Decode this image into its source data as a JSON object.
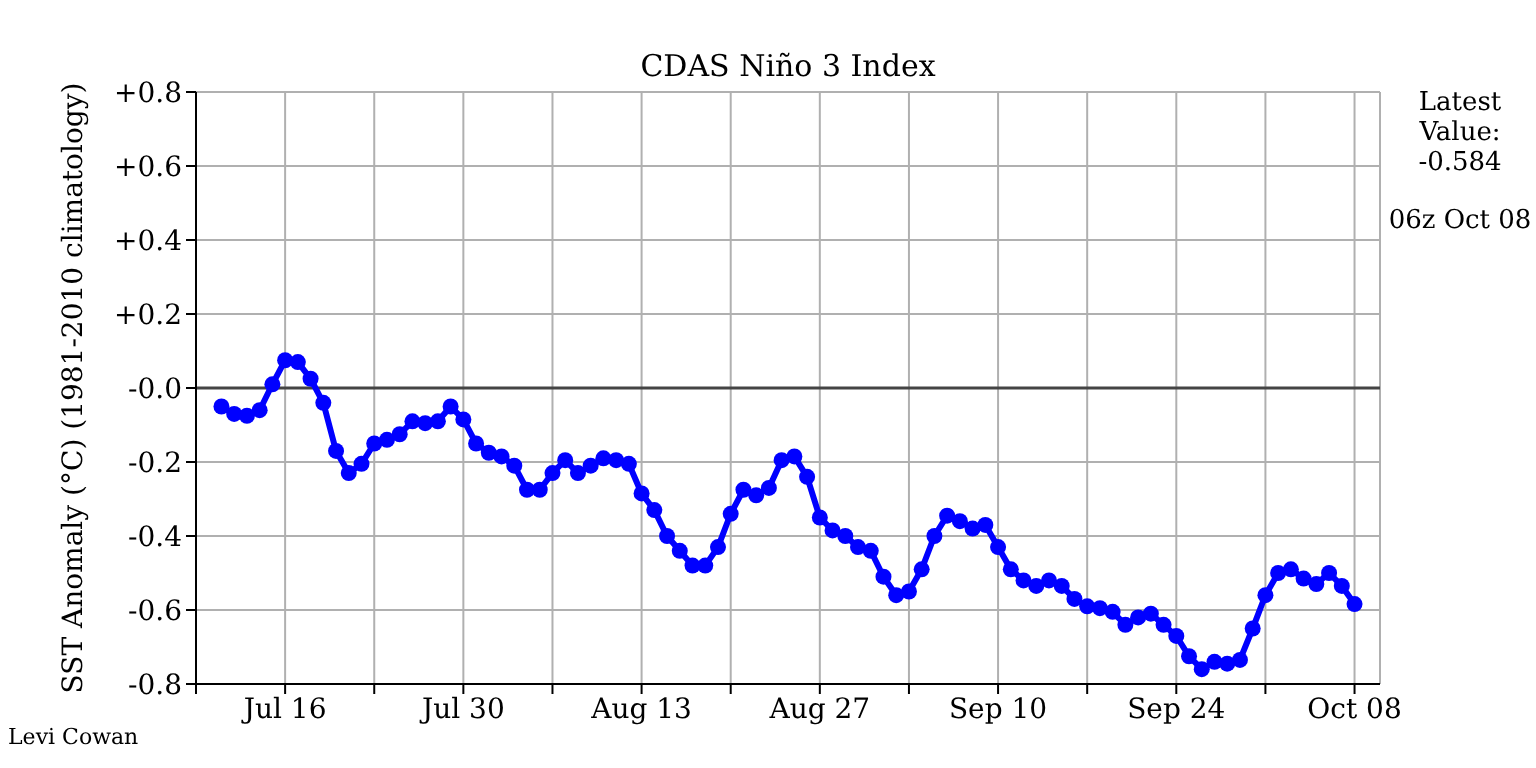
{
  "chart_data": {
    "type": "line",
    "title": "CDAS Niño 3 Index",
    "ylabel": "SST Anomaly (°C) (1981-2010 climatology)",
    "x": [
      "--07-11",
      "--07-12",
      "--07-13",
      "--07-14",
      "--07-15",
      "--07-16",
      "--07-17",
      "--07-18",
      "--07-19",
      "--07-20",
      "--07-21",
      "--07-22",
      "--07-23",
      "--07-24",
      "--07-25",
      "--07-26",
      "--07-27",
      "--07-28",
      "--07-29",
      "--07-30",
      "--07-31",
      "--08-01",
      "--08-02",
      "--08-03",
      "--08-04",
      "--08-05",
      "--08-06",
      "--08-07",
      "--08-08",
      "--08-09",
      "--08-10",
      "--08-11",
      "--08-12",
      "--08-13",
      "--08-14",
      "--08-15",
      "--08-16",
      "--08-17",
      "--08-18",
      "--08-19",
      "--08-20",
      "--08-21",
      "--08-22",
      "--08-23",
      "--08-24",
      "--08-25",
      "--08-26",
      "--08-27",
      "--08-28",
      "--08-29",
      "--08-30",
      "--08-31",
      "--09-01",
      "--09-02",
      "--09-03",
      "--09-04",
      "--09-05",
      "--09-06",
      "--09-07",
      "--09-08",
      "--09-09",
      "--09-10",
      "--09-11",
      "--09-12",
      "--09-13",
      "--09-14",
      "--09-15",
      "--09-16",
      "--09-17",
      "--09-18",
      "--09-19",
      "--09-20",
      "--09-21",
      "--09-22",
      "--09-23",
      "--09-24",
      "--09-25",
      "--09-26",
      "--09-27",
      "--09-28",
      "--09-29",
      "--09-30",
      "--10-01",
      "--10-02",
      "--10-03",
      "--10-04",
      "--10-05",
      "--10-06",
      "--10-07",
      "--10-08"
    ],
    "series": [
      {
        "color": "#0000ff",
        "values": [
          -0.05,
          -0.07,
          -0.075,
          -0.06,
          0.01,
          0.075,
          0.07,
          0.025,
          -0.04,
          -0.17,
          -0.23,
          -0.205,
          -0.15,
          -0.14,
          -0.125,
          -0.09,
          -0.095,
          -0.09,
          -0.05,
          -0.085,
          -0.15,
          -0.175,
          -0.185,
          -0.21,
          -0.275,
          -0.275,
          -0.23,
          -0.195,
          -0.23,
          -0.21,
          -0.19,
          -0.195,
          -0.205,
          -0.285,
          -0.33,
          -0.4,
          -0.44,
          -0.48,
          -0.48,
          -0.43,
          -0.34,
          -0.275,
          -0.29,
          -0.27,
          -0.195,
          -0.185,
          -0.24,
          -0.35,
          -0.385,
          -0.4,
          -0.43,
          -0.44,
          -0.51,
          -0.56,
          -0.55,
          -0.49,
          -0.4,
          -0.345,
          -0.36,
          -0.38,
          -0.37,
          -0.43,
          -0.49,
          -0.52,
          -0.535,
          -0.52,
          -0.535,
          -0.57,
          -0.59,
          -0.595,
          -0.605,
          -0.64,
          -0.62,
          -0.61,
          -0.64,
          -0.67,
          -0.725,
          -0.76,
          -0.74,
          -0.745,
          -0.735,
          -0.65,
          -0.56,
          -0.5,
          -0.49,
          -0.515,
          -0.53,
          -0.5,
          -0.535,
          -0.584
        ]
      }
    ],
    "xlim": [
      "--07-09",
      "--10-10"
    ],
    "xticks": [
      {
        "value": "--07-09",
        "label": null
      },
      {
        "value": "--07-16",
        "label": "Jul 16"
      },
      {
        "value": "--07-23",
        "label": null
      },
      {
        "value": "--07-30",
        "label": "Jul 30"
      },
      {
        "value": "--08-06",
        "label": null
      },
      {
        "value": "--08-13",
        "label": "Aug 13"
      },
      {
        "value": "--08-20",
        "label": null
      },
      {
        "value": "--08-27",
        "label": "Aug 27"
      },
      {
        "value": "--09-03",
        "label": null
      },
      {
        "value": "--09-10",
        "label": "Sep 10"
      },
      {
        "value": "--09-17",
        "label": null
      },
      {
        "value": "--09-24",
        "label": "Sep 24"
      },
      {
        "value": "--10-01",
        "label": null
      },
      {
        "value": "--10-08",
        "label": "Oct 08"
      }
    ],
    "ylim": [
      -0.8,
      0.8
    ],
    "yticks": [
      {
        "value": -0.8,
        "label": "-0.8"
      },
      {
        "value": -0.6,
        "label": "-0.6"
      },
      {
        "value": -0.4,
        "label": "-0.4"
      },
      {
        "value": -0.2,
        "label": "-0.2"
      },
      {
        "value": 0,
        "label": "-0.0"
      },
      {
        "value": 0.2,
        "label": "+0.2"
      },
      {
        "value": 0.4,
        "label": "+0.4"
      },
      {
        "value": 0.6,
        "label": "+0.6"
      },
      {
        "value": 0.8,
        "label": "+0.8"
      }
    ],
    "ref_lines": [
      {
        "axis": "y",
        "value": 0,
        "color": "#444444"
      }
    ],
    "grid": true,
    "marker": "circle",
    "line_style": "solid",
    "legend": false,
    "annotations": [
      "Latest Value: -0.584",
      "06z Oct 08",
      "Levi Cowan"
    ]
  }
}
